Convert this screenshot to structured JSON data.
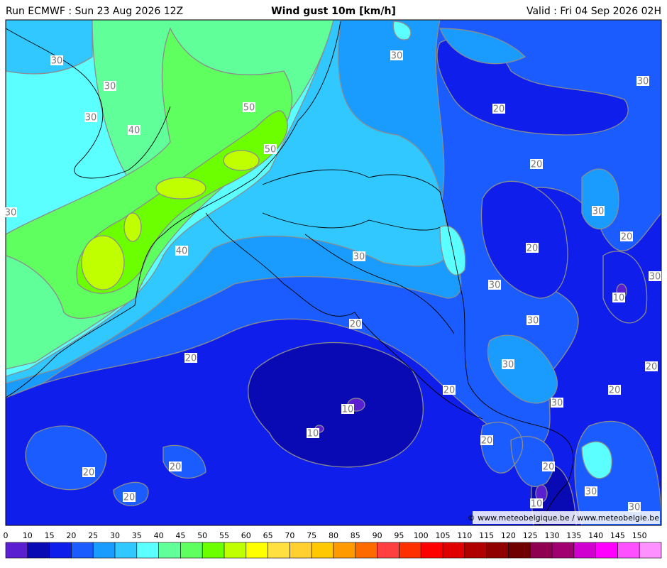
{
  "header": {
    "run": "Run ECMWF : Sun 23 Aug 2026 12Z",
    "title": "Wind gust 10m [km/h]",
    "valid": "Valid : Fri 04 Sep 2026 02H"
  },
  "map": {
    "contour_labels": [
      "30",
      "30",
      "30",
      "40",
      "50",
      "50",
      "30",
      "40",
      "30",
      "20",
      "30",
      "20",
      "30",
      "20",
      "20",
      "30",
      "30",
      "30",
      "10",
      "30",
      "20",
      "20",
      "30",
      "20",
      "20",
      "20",
      "30",
      "10",
      "10",
      "20",
      "20",
      "20",
      "20",
      "30",
      "20",
      "10",
      "30"
    ],
    "credit": "© www.meteobelgique.be / www.meteobelgie.be"
  },
  "legend": {
    "ticks": [
      0,
      10,
      15,
      20,
      25,
      30,
      35,
      40,
      45,
      50,
      55,
      60,
      65,
      70,
      75,
      80,
      85,
      90,
      95,
      100,
      105,
      110,
      115,
      120,
      125,
      130,
      135,
      140,
      145,
      150
    ],
    "colors": [
      "#5a1fd0",
      "#0a0ab4",
      "#0f1eea",
      "#1a5cff",
      "#1a9cff",
      "#30c8ff",
      "#5cffff",
      "#60ff9a",
      "#60ff60",
      "#6cff00",
      "#c0ff00",
      "#ffff00",
      "#ffe040",
      "#ffd030",
      "#ffc800",
      "#ff9a00",
      "#ff6a00",
      "#ff4040",
      "#ff3000",
      "#ff0000",
      "#e00000",
      "#b00000",
      "#900000",
      "#700000",
      "#900050",
      "#a00070",
      "#d000d0",
      "#ff00ff",
      "#ff50ff",
      "#ff90ff"
    ]
  }
}
